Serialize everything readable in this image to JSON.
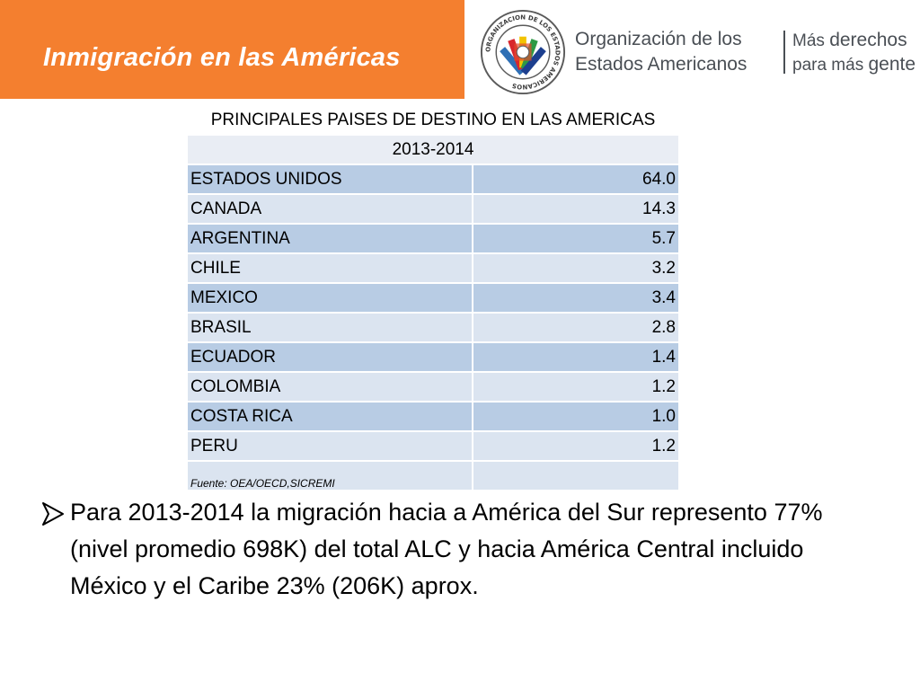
{
  "header": {
    "title": "Inmigración en las Américas",
    "org_line1": "Organización de los",
    "org_line2": "Estados Americanos",
    "motto_line1_a": "Más",
    "motto_line1_b": "derechos",
    "motto_line2_a": "para más",
    "motto_line2_b": "gente",
    "seal_text": "ORGANIZACION DE LOS ESTADOS AMERICANOS",
    "brand_color": "#f47f2f"
  },
  "table": {
    "title": "PRINCIPALES PAISES DE DESTINO EN LAS AMERICAS",
    "period": "2013-2014",
    "rows": [
      {
        "country": "ESTADOS UNIDOS",
        "value": "64.0"
      },
      {
        "country": "CANADA",
        "value": "14.3"
      },
      {
        "country": "ARGENTINA",
        "value": "5.7"
      },
      {
        "country": "CHILE",
        "value": "3.2"
      },
      {
        "country": "MEXICO",
        "value": "3.4"
      },
      {
        "country": "BRASIL",
        "value": "2.8"
      },
      {
        "country": "ECUADOR",
        "value": "1.4"
      },
      {
        "country": "COLOMBIA",
        "value": "1.2"
      },
      {
        "country": "COSTA RICA",
        "value": "1.0"
      },
      {
        "country": "PERU",
        "value": "1.2"
      }
    ],
    "source": "Fuente: OEA/OECD,SICREMI"
  },
  "bullet": {
    "icon": "arrow-bullet-icon",
    "text": "Para 2013-2014 la migración hacia a América del Sur represento 77% (nivel promedio 698K) del total ALC y hacia América Central incluido México y el Caribe 23% (206K) aprox."
  }
}
